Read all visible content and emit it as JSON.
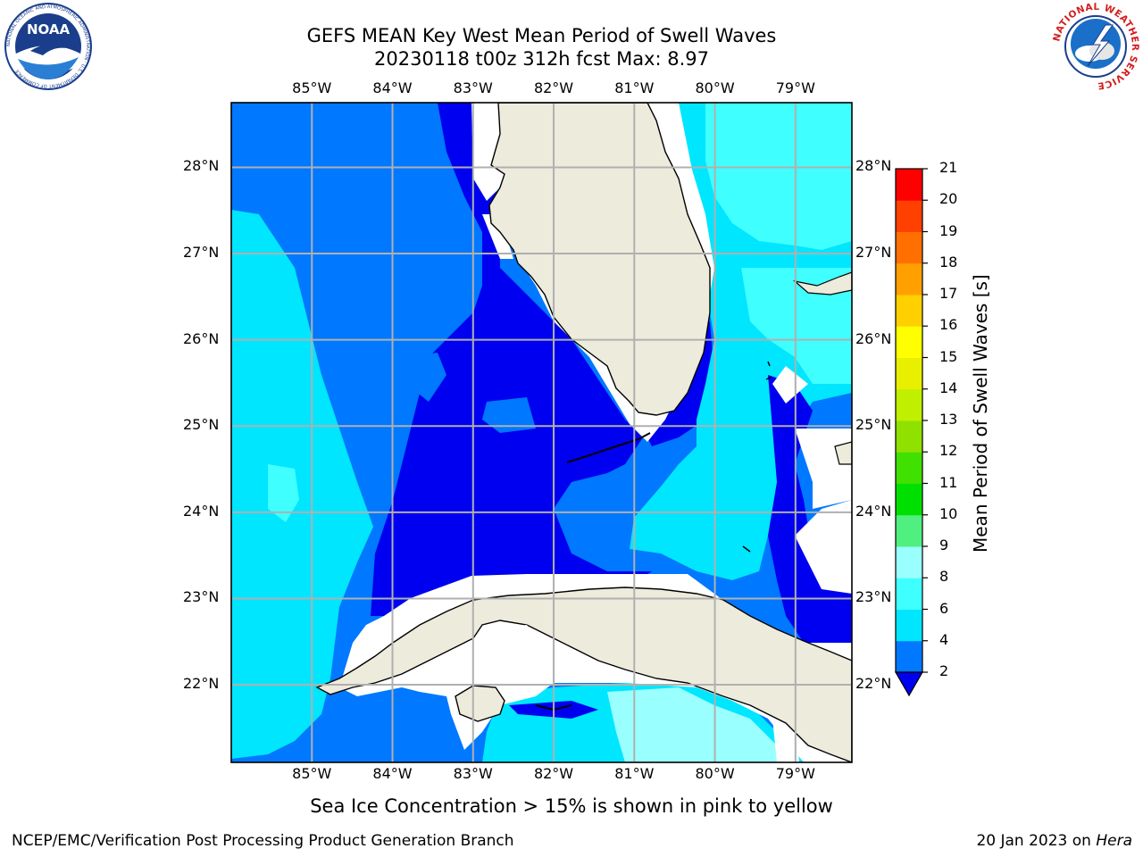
{
  "title_line1": "GEFS MEAN Key West Mean Period of Swell Waves",
  "title_line2": "20230118 t00z 312h fcst   Max: 8.97",
  "subnote": "Sea Ice Concentration > 15% is shown in pink to yellow",
  "footer_left": "NCEP/EMC/Verification Post Processing Product Generation Branch",
  "footer_right_date": "20 Jan 2023 on",
  "footer_right_host": "Hera",
  "logos": {
    "noaa": {
      "text": "NOAA",
      "ring_text": "NATIONAL OCEANIC AND ATMOSPHERIC ADMINISTRATION · U.S. DEPARTMENT OF COMMERCE"
    },
    "nws": {
      "ring_text": "NATIONAL WEATHER SERVICE"
    }
  },
  "map": {
    "lon_labels": [
      "85°W",
      "84°W",
      "83°W",
      "82°W",
      "81°W",
      "80°W",
      "79°W"
    ],
    "lat_labels": [
      "28°N",
      "27°N",
      "26°N",
      "25°N",
      "24°N",
      "23°N",
      "22°N"
    ],
    "lon_values": [
      -85,
      -84,
      -83,
      -82,
      -81,
      -80,
      -79
    ],
    "lat_values": [
      28,
      27,
      26,
      25,
      24,
      23,
      22
    ],
    "lon_range": [
      -86.0,
      -78.3
    ],
    "lat_range": [
      21.1,
      28.75
    ],
    "colors": {
      "land": "#ecebdc",
      "coast": "#000000",
      "grid": "#b0b0b0",
      "nodata": "#ffffff"
    }
  },
  "colorbar": {
    "title": "Mean Period of Swell Waves [s]",
    "ticks": [
      "2",
      "4",
      "6",
      "8",
      "9",
      "10",
      "11",
      "12",
      "13",
      "14",
      "15",
      "16",
      "17",
      "18",
      "19",
      "20",
      "21"
    ],
    "levels": [
      2,
      4,
      6,
      8,
      9,
      10,
      11,
      12,
      13,
      14,
      15,
      16,
      17,
      18,
      19,
      20,
      21
    ],
    "colors": [
      "#0000f0",
      "#0078ff",
      "#00e6ff",
      "#40ffff",
      "#99ffff",
      "#50f080",
      "#00e000",
      "#40e000",
      "#90e000",
      "#c0f000",
      "#e8f000",
      "#ffff00",
      "#ffd000",
      "#ffa000",
      "#ff7000",
      "#ff4000",
      "#ff0000"
    ],
    "extend": "min"
  }
}
